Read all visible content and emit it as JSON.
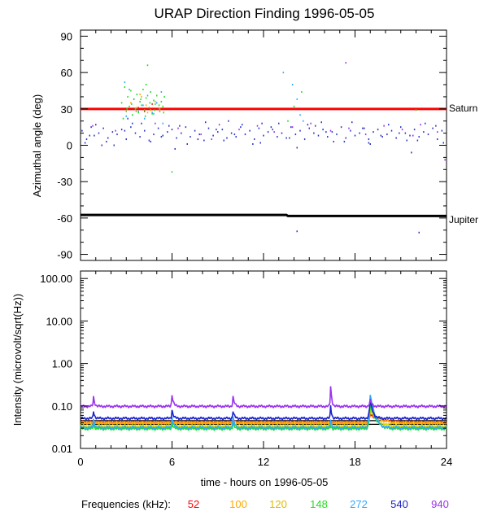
{
  "chart_data": [
    {
      "type": "scatter",
      "title": "URAP Direction Finding  1996-05-05",
      "ylabel": "Azimuthal angle (deg)",
      "xlim": [
        0,
        24
      ],
      "ylim": [
        -95,
        95
      ],
      "yticks": [
        90,
        60,
        30,
        0,
        -30,
        -60,
        -90
      ],
      "yticklabels": [
        "90",
        "60",
        "30",
        "0",
        "-30",
        "-60",
        "-90"
      ],
      "reference_lines": [
        {
          "name": "Saturn",
          "color": "#ff0000",
          "x": [
            0,
            24
          ],
          "y": [
            30,
            30
          ]
        },
        {
          "name": "Jupiter",
          "color": "#000000",
          "x": [
            0,
            13.5,
            13.6,
            24
          ],
          "y": [
            -57.5,
            -57.5,
            -58.3,
            -58.3
          ]
        }
      ],
      "series": [
        {
          "color": "#2a35c8",
          "x": [
            0.1,
            0.4,
            0.7,
            0.9,
            1.2,
            1.5,
            1.8,
            2.1,
            2.4,
            2.7,
            3.0,
            3.3,
            3.6,
            3.9,
            4.2,
            4.5,
            4.8,
            5.1,
            5.4,
            5.7,
            6.0,
            6.3,
            6.6,
            6.9,
            7.2,
            7.5,
            7.8,
            8.1,
            8.4,
            8.7,
            9.0,
            9.3,
            9.6,
            9.9,
            10.2,
            10.5,
            10.8,
            11.1,
            11.4,
            11.7,
            12.0,
            12.3,
            12.6,
            12.9,
            13.2,
            13.5,
            13.8,
            14.1,
            14.4,
            14.7,
            15.0,
            15.3,
            15.6,
            15.9,
            16.2,
            16.5,
            16.8,
            17.1,
            17.4,
            17.7,
            18.0,
            18.3,
            18.6,
            18.9,
            19.2,
            19.5,
            19.8,
            20.1,
            20.4,
            20.7,
            21.0,
            21.3,
            21.6,
            21.9,
            22.2,
            22.5,
            22.8,
            23.1,
            23.4,
            23.7,
            0.3,
            1.0,
            2.2,
            3.4,
            4.6,
            5.8,
            7.0,
            8.2,
            9.4,
            10.6,
            11.8,
            13.0,
            14.2,
            15.4,
            16.6,
            17.8,
            19.0,
            20.2,
            21.4,
            22.6,
            23.8,
            0.6,
            1.7,
            2.9,
            4.0,
            5.3,
            6.5,
            7.7,
            8.9,
            10.1,
            11.3,
            12.5,
            13.7,
            14.9,
            16.1,
            17.3,
            18.5,
            19.7,
            20.9,
            22.1,
            23.3,
            14.2,
            22.2,
            9.7,
            3.1,
            1.4,
            6.2,
            11.9,
            15.8,
            18.9,
            21.7
          ],
          "y": [
            12,
            5,
            15,
            8,
            10,
            14,
            6,
            11,
            9,
            13,
            5,
            15,
            10,
            7,
            12,
            4,
            9,
            14,
            8,
            11,
            13,
            6,
            10,
            15,
            7,
            12,
            9,
            4,
            14,
            8,
            11,
            13,
            6,
            10,
            7,
            15,
            9,
            12,
            5,
            14,
            8,
            11,
            13,
            7,
            10,
            6,
            15,
            9,
            12,
            5,
            14,
            10,
            8,
            13,
            7,
            11,
            9,
            15,
            6,
            12,
            8,
            10,
            14,
            5,
            11,
            13,
            7,
            9,
            12,
            6,
            15,
            10,
            8,
            13,
            7,
            11,
            9,
            14,
            5,
            12,
            2,
            17,
            0,
            18,
            3,
            16,
            1,
            19,
            4,
            17,
            2,
            18,
            -2,
            16,
            3,
            19,
            1,
            17,
            4,
            18,
            2,
            8,
            3,
            12,
            18,
            7,
            16,
            5,
            13,
            9,
            1,
            15,
            6,
            17,
            11,
            3,
            14,
            8,
            10,
            4,
            16,
            -71,
            -72,
            20,
            22,
            0,
            -3,
            18,
            19,
            2,
            -6
          ]
        },
        {
          "color": "#2ea8ff",
          "x": [
            2.9,
            3.2,
            3.5,
            3.8,
            4.1,
            4.4,
            4.7,
            5.0,
            5.3,
            13.3,
            13.9,
            14.2,
            14.4,
            14.6,
            3.0,
            3.6,
            4.2,
            4.8,
            5.4
          ],
          "y": [
            52,
            46,
            38,
            28,
            33,
            41,
            27,
            35,
            44,
            60,
            50,
            38,
            25,
            20,
            24,
            30,
            22,
            26,
            18
          ]
        },
        {
          "color": "#22dd22",
          "x": [
            2.7,
            2.9,
            3.0,
            3.1,
            3.2,
            3.3,
            3.4,
            3.5,
            3.6,
            3.7,
            3.8,
            3.9,
            4.0,
            4.1,
            4.2,
            4.3,
            4.4,
            4.5,
            4.6,
            4.7,
            4.8,
            4.9,
            5.0,
            5.1,
            5.2,
            5.3,
            5.4,
            5.5,
            2.8,
            3.05,
            3.35,
            3.65,
            3.95,
            4.25,
            4.55,
            4.85,
            5.15,
            5.45,
            4.3,
            6.0,
            14.0,
            13.6,
            22.0,
            14.5
          ],
          "y": [
            35,
            48,
            28,
            40,
            32,
            45,
            25,
            38,
            30,
            42,
            27,
            36,
            33,
            46,
            29,
            39,
            66,
            31,
            44,
            26,
            37,
            34,
            41,
            30,
            28,
            36,
            32,
            40,
            22,
            30,
            34,
            28,
            38,
            24,
            35,
            29,
            33,
            27,
            50,
            -22,
            32,
            20,
            29,
            44
          ]
        },
        {
          "color": "#ffaa00",
          "x": [
            3.3,
            3.7,
            4.0,
            4.3,
            4.6,
            4.9,
            5.2,
            3.9,
            4.4
          ],
          "y": [
            35,
            31,
            40,
            33,
            29,
            36,
            30,
            42,
            27
          ]
        },
        {
          "color": "#dd2222",
          "x": [
            3.8,
            4.2,
            4.7,
            5.1
          ],
          "y": [
            31,
            28,
            34,
            30
          ]
        },
        {
          "color": "#9933ee",
          "x": [
            0.8,
            2.3,
            4.9,
            6.4,
            7.9,
            9.1,
            10.4,
            11.6,
            12.7,
            13.9,
            15.1,
            16.4,
            17.6,
            18.7,
            19.9,
            21.1,
            22.3,
            23.4,
            17.4,
            21.8,
            23.9,
            8.6
          ],
          "y": [
            16,
            12,
            18,
            14,
            9,
            17,
            13,
            16,
            11,
            15,
            18,
            12,
            14,
            9,
            16,
            13,
            17,
            11,
            68,
            8,
            -12,
            5
          ]
        }
      ]
    },
    {
      "type": "line",
      "ylabel": "Intensity (microvolt/sqrt(Hz))",
      "xlabel": "time - hours on 1996-05-05",
      "xlim": [
        0,
        24
      ],
      "ylim": [
        0.01,
        150
      ],
      "yscale": "log",
      "yticks": [
        100,
        10,
        1,
        0.1,
        0.01
      ],
      "yticklabels": [
        "100.00",
        "10.00",
        "1.00",
        "0.10",
        "0.01"
      ],
      "xticks": [
        0,
        6,
        12,
        18,
        24
      ],
      "xticklabels": [
        "0",
        "6",
        "12",
        "18",
        "24"
      ],
      "reference_lines": [
        {
          "color": "#000000",
          "y": 0.045
        },
        {
          "color": "#000000",
          "y": 0.037
        }
      ],
      "baseline": {
        "x": [
          0,
          24
        ]
      },
      "spikes": [
        {
          "t": 0.85,
          "w": 0.07
        },
        {
          "t": 6.0,
          "w": 0.08
        },
        {
          "t": 10.0,
          "w": 0.08
        },
        {
          "t": 16.4,
          "w": 0.06
        },
        {
          "t": 19.0,
          "w": 0.14
        }
      ],
      "series": [
        {
          "name": "52",
          "color": "#ff0000",
          "base": 0.041,
          "peaks": [
            1.05,
            1.1,
            1.15,
            1.05,
            1.5
          ],
          "tail": 18
        },
        {
          "name": "100",
          "color": "#ffaa00",
          "base": 0.04,
          "peaks": [
            1.05,
            1.1,
            1.1,
            1.05,
            1.8
          ],
          "tail": 14
        },
        {
          "name": "120",
          "color": "#dddd00",
          "base": 0.034,
          "peaks": [
            1.1,
            1.2,
            1.2,
            1.1,
            2.4
          ],
          "tail": 10
        },
        {
          "name": "148",
          "color": "#22dd22",
          "base": 0.029,
          "peaks": [
            1.3,
            1.4,
            1.4,
            1.2,
            3.6
          ],
          "tail": 8
        },
        {
          "name": "272",
          "color": "#2ea8ff",
          "base": 0.031,
          "peaks": [
            1.6,
            1.8,
            1.8,
            1.6,
            5.5
          ],
          "tail": 6
        },
        {
          "name": "540",
          "color": "#1a22cc",
          "base": 0.051,
          "peaks": [
            1.5,
            1.6,
            1.5,
            2.0,
            2.6
          ],
          "tail": 4
        },
        {
          "name": "940",
          "color": "#9933ee",
          "base": 0.098,
          "peaks": [
            1.7,
            1.9,
            1.7,
            3.0,
            1.4
          ],
          "tail": 3
        }
      ]
    }
  ],
  "legend": {
    "label": "Frequencies (kHz):",
    "items": [
      {
        "text": "52",
        "color": "#ff0000"
      },
      {
        "text": "100",
        "color": "#ffaa00"
      },
      {
        "text": "120",
        "color": "#ddbb00"
      },
      {
        "text": "148",
        "color": "#22dd22"
      },
      {
        "text": "272",
        "color": "#2ea8ff"
      },
      {
        "text": "540",
        "color": "#1a22cc"
      },
      {
        "text": "940",
        "color": "#9933ee"
      }
    ]
  }
}
